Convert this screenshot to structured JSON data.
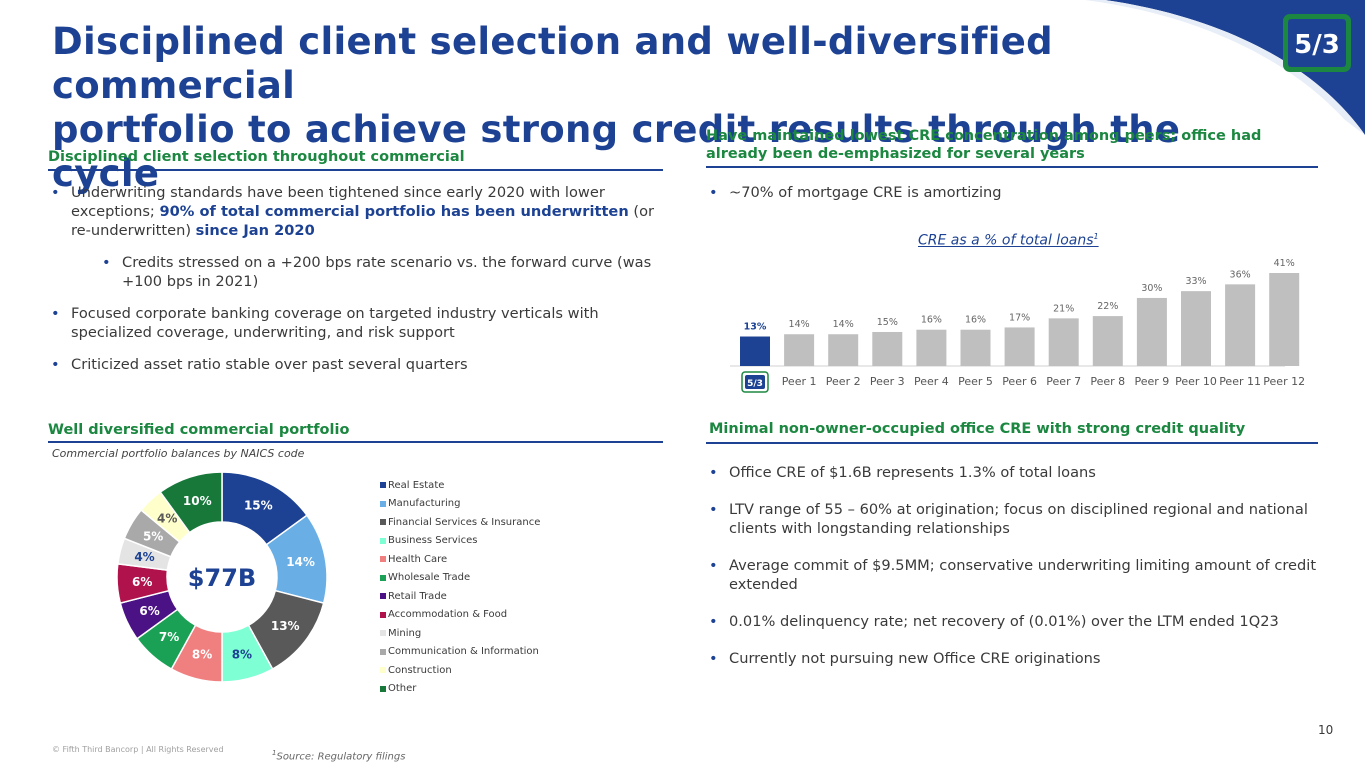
{
  "header": {
    "title_line1": "Disciplined client selection and well-diversified commercial",
    "title_line2": "portfolio to achieve strong credit results through the cycle",
    "logo_text": "5/3"
  },
  "left_top": {
    "heading": "Disciplined client selection throughout commercial",
    "b1_part1": "Underwriting standards have been tightened since early 2020 with lower exceptions; ",
    "b1_bold1": "90% of total commercial portfolio has been underwritten",
    "b1_part2": " (or re-underwritten) ",
    "b1_bold2": "since Jan 2020",
    "b2": "Credits stressed on a +200 bps rate scenario vs. the forward curve (was +100 bps in 2021)",
    "b3": "Focused corporate banking coverage on targeted industry verticals with specialized coverage, underwriting, and risk support",
    "b4": "Criticized asset ratio stable over past several quarters"
  },
  "right_top": {
    "heading": "Have maintained lowest CRE concentration among peers; office had already been de-emphasized for several years",
    "b1": "~70% of mortgage CRE is amortizing"
  },
  "left_bottom": {
    "heading": "Well diversified commercial portfolio",
    "caption": "Commercial portfolio balances by NAICS code"
  },
  "right_bottom": {
    "heading": "Minimal non-owner-occupied office CRE with strong credit quality",
    "b1": "Office CRE of $1.6B represents 1.3% of total loans",
    "b2": "LTV range of 55 – 60% at origination; focus on disciplined regional and national clients with longstanding relationships",
    "b3": "Average commit of $9.5MM; conservative underwriting limiting amount of credit extended",
    "b4": "0.01% delinquency rate; net recovery of (0.01%) over the LTM ended 1Q23",
    "b5": "Currently not pursuing new Office CRE originations"
  },
  "chart_data": [
    {
      "type": "bar",
      "title": "CRE as a % of total loans",
      "title_superscript": "1",
      "categories": [
        "Fifth Third",
        "Peer 1",
        "Peer 2",
        "Peer 3",
        "Peer 4",
        "Peer 5",
        "Peer 6",
        "Peer 7",
        "Peer 8",
        "Peer 9",
        "Peer 10",
        "Peer 11",
        "Peer 12"
      ],
      "values": [
        13,
        14,
        14,
        15,
        16,
        16,
        17,
        21,
        22,
        30,
        33,
        36,
        41
      ],
      "labels": [
        "13%",
        "14%",
        "14%",
        "15%",
        "16%",
        "16%",
        "17%",
        "21%",
        "22%",
        "30%",
        "33%",
        "36%",
        "41%"
      ],
      "colors": [
        "#1d4293",
        "#bfbfbf"
      ],
      "ylim": [
        0,
        41
      ]
    },
    {
      "type": "pie",
      "subtype": "donut",
      "center_label": "$77B",
      "categories": [
        "Real Estate",
        "Manufacturing",
        "Financial Services & Insurance",
        "Business Services",
        "Health Care",
        "Wholesale Trade",
        "Retail Trade",
        "Accommodation & Food",
        "Mining",
        "Communication & Information",
        "Construction",
        "Other"
      ],
      "values": [
        15,
        14,
        13,
        8,
        8,
        7,
        6,
        6,
        4,
        5,
        4,
        10
      ],
      "labels": [
        "15%",
        "14%",
        "13%",
        "8%",
        "8%",
        "7%",
        "6%",
        "6%",
        "4%",
        "5%",
        "4%",
        "10%"
      ],
      "colors": [
        "#1d4293",
        "#6aaee6",
        "#595959",
        "#7fffd4",
        "#f08080",
        "#1aa155",
        "#4b1286",
        "#b0134c",
        "#e4e4e4",
        "#a9a9a9",
        "#ffffcc",
        "#17783a"
      ],
      "label_colors": [
        "#ffffff",
        "#ffffff",
        "#ffffff",
        "#1d4293",
        "#ffffff",
        "#ffffff",
        "#ffffff",
        "#ffffff",
        "#1d4293",
        "#ffffff",
        "#595959",
        "#ffffff"
      ]
    }
  ],
  "footer": {
    "copyright": "© Fifth Third Bancorp | All Rights Reserved",
    "source_sup": "1",
    "source": "Source: Regulatory filings",
    "page": "10"
  }
}
